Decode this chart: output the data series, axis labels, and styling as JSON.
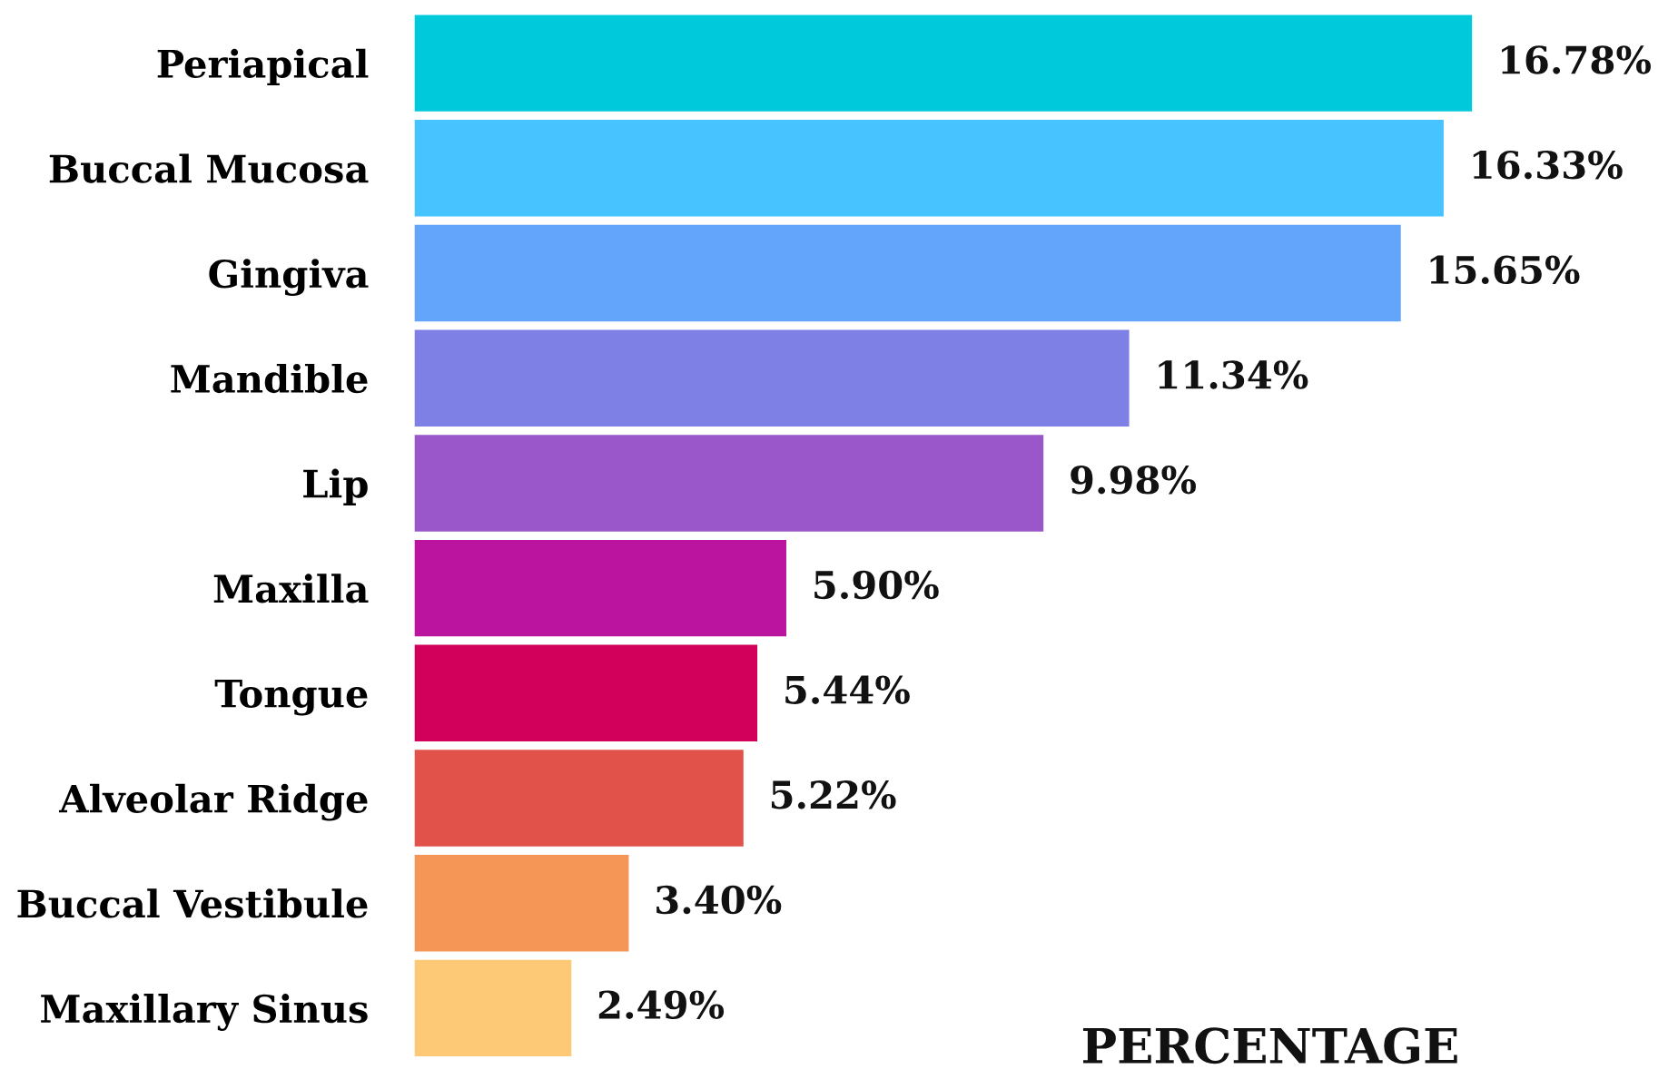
{
  "chart_data": {
    "type": "bar",
    "orientation": "horizontal",
    "xlabel": "PERCENTAGE",
    "categories": [
      "Periapical",
      "Buccal Mucosa",
      "Gingiva",
      "Mandible",
      "Lip",
      "Maxilla",
      "Tongue",
      "Alveolar Ridge",
      "Buccal Vestibule",
      "Maxillary Sinus"
    ],
    "values": [
      16.78,
      16.33,
      15.65,
      11.34,
      9.98,
      5.9,
      5.44,
      5.22,
      3.4,
      2.49
    ],
    "value_labels": [
      "16.78%",
      "16.33%",
      "15.65%",
      "11.34%",
      "9.98%",
      "5.90%",
      "5.44%",
      "5.22%",
      "3.40%",
      "2.49%"
    ],
    "colors": [
      "#00c9dc",
      "#47c4ff",
      "#62a5fa",
      "#7f80e6",
      "#9957c9",
      "#bb149f",
      "#d2005a",
      "#e0524a",
      "#f59556",
      "#fec977"
    ],
    "tick_labels": "y"
  }
}
